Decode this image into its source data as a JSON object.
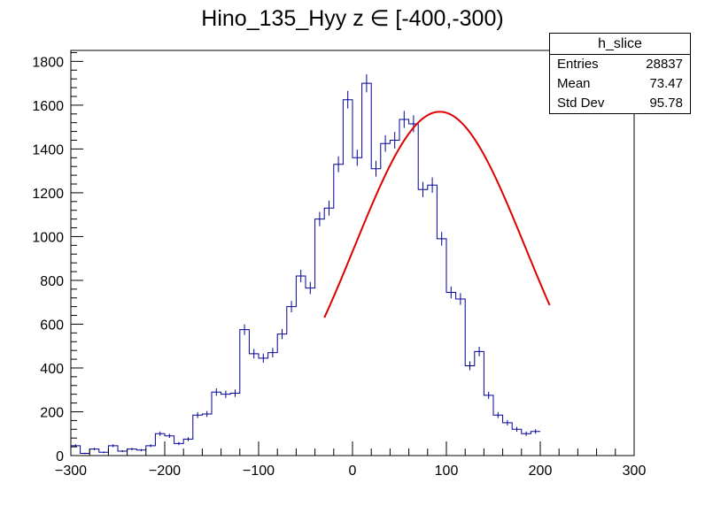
{
  "chart_data": {
    "type": "bar",
    "title": "Hino_135_Hyy z  ∈ [-400,-300)",
    "xlabel": "",
    "ylabel": "",
    "xlim": [
      -300,
      300
    ],
    "ylim": [
      0,
      1850
    ],
    "x_ticks": [
      "−300",
      "−200",
      "−100",
      "0",
      "100",
      "200",
      "300"
    ],
    "y_ticks": [
      "0",
      "200",
      "400",
      "600",
      "800",
      "1000",
      "1200",
      "1400",
      "1600",
      "1800"
    ],
    "bin_width": 10,
    "bin_edges_start": -300,
    "values": [
      45,
      10,
      30,
      15,
      45,
      20,
      30,
      25,
      45,
      100,
      90,
      55,
      75,
      185,
      190,
      290,
      280,
      285,
      575,
      465,
      445,
      470,
      555,
      680,
      820,
      765,
      1080,
      1130,
      1330,
      1625,
      1360,
      1700,
      1310,
      1425,
      1440,
      1535,
      1515,
      1215,
      1235,
      990,
      745,
      715,
      410,
      475,
      275,
      185,
      150,
      120,
      100,
      110
    ],
    "fit": {
      "type": "gaussian",
      "amplitude": 1570,
      "mean": 93,
      "sigma": 91,
      "x_range": [
        -30,
        210
      ],
      "color": "#dd0000"
    },
    "hist_color": "#000099",
    "stats_box": {
      "name": "h_slice",
      "entries_label": "Entries",
      "entries": "28837",
      "mean_label": "Mean",
      "mean": "73.47",
      "std_label": "Std Dev",
      "std": "95.78"
    },
    "grid": false,
    "legend": "none"
  }
}
